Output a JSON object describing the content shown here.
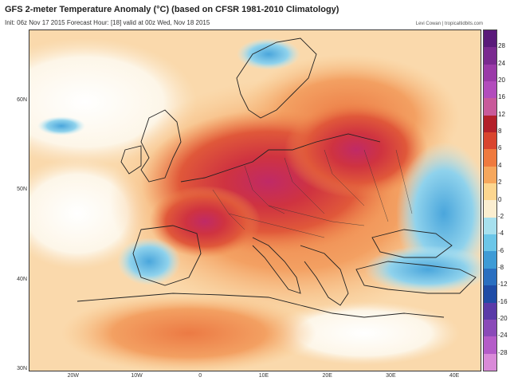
{
  "header": {
    "title": "GFS 2-meter Temperature Anomaly (°C) (based on CFSR 1981-2010 Climatology)",
    "subtitle": "Init: 06z Nov 17 2015   Forecast Hour: [18]   valid at 00z Wed, Nov 18 2015",
    "credit": "Levi Cowan | tropicaltidbits.com"
  },
  "axes": {
    "latitudes": [
      {
        "label": "60N",
        "value": 60
      },
      {
        "label": "50N",
        "value": 50
      },
      {
        "label": "40N",
        "value": 40
      },
      {
        "label": "30N",
        "value": 30
      }
    ],
    "longitudes": [
      {
        "label": "20W",
        "value": -20
      },
      {
        "label": "10W",
        "value": -10
      },
      {
        "label": "0",
        "value": 0
      },
      {
        "label": "10E",
        "value": 10
      },
      {
        "label": "20E",
        "value": 20
      },
      {
        "label": "30E",
        "value": 30
      },
      {
        "label": "40E",
        "value": 40
      }
    ],
    "lon_range": [
      -27,
      44
    ],
    "lat_range": [
      30,
      68
    ]
  },
  "colorbar": {
    "labels": [
      "28",
      "24",
      "20",
      "16",
      "12",
      "8",
      "6",
      "4",
      "2",
      "0",
      "-2",
      "-4",
      "-6",
      "-8",
      "-12",
      "-16",
      "-20",
      "-24",
      "-28"
    ],
    "colors": [
      "#5a1a7a",
      "#7a2a90",
      "#9a3aa8",
      "#b24cbc",
      "#c85a9a",
      "#b3202a",
      "#d9452e",
      "#ef7a3e",
      "#f6a75c",
      "#fcd68f",
      "#fbeed0",
      "#a7e0ee",
      "#6cc6e8",
      "#3e9bd6",
      "#2a6fc0",
      "#1f4ca6",
      "#5a3aa8",
      "#8a4ab8",
      "#b45cc8",
      "#d98ad8"
    ]
  },
  "map": {
    "variable": "2-meter temperature anomaly",
    "units": "°C"
  }
}
